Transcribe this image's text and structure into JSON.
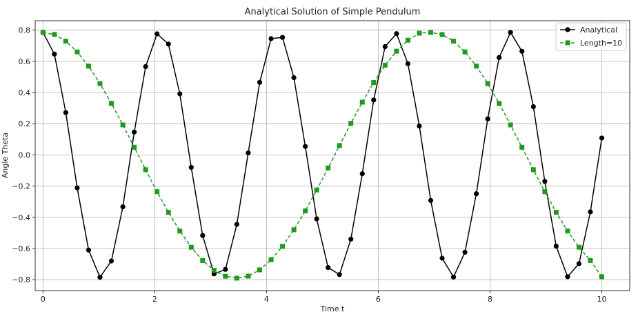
{
  "chart_data": {
    "type": "line",
    "title": "Analytical Solution of Simple Pendulum",
    "xlabel": "Time t",
    "ylabel": "Angle Theta",
    "xlim": [
      -0.14,
      10.5
    ],
    "ylim": [
      -0.87,
      0.86
    ],
    "xticks": [
      0,
      2,
      4,
      6,
      8,
      10
    ],
    "yticks": [
      -0.8,
      -0.6,
      -0.4,
      -0.2,
      0.0,
      0.2,
      0.4,
      0.6,
      0.8
    ],
    "xtick_labels": [
      "0",
      "2",
      "4",
      "6",
      "8",
      "10"
    ],
    "ytick_labels": [
      "−0.8",
      "−0.6",
      "−0.4",
      "−0.2",
      "0.0",
      "0.2",
      "0.4",
      "0.6",
      "0.8"
    ],
    "grid": true,
    "legend_position": "top-right",
    "series": [
      {
        "name": "Analytical",
        "color": "#000000",
        "marker": "circle",
        "linestyle": "solid",
        "x": [
          0.0,
          0.204,
          0.408,
          0.612,
          0.816,
          1.02,
          1.224,
          1.429,
          1.633,
          1.837,
          2.041,
          2.245,
          2.449,
          2.653,
          2.857,
          3.061,
          3.265,
          3.469,
          3.673,
          3.878,
          4.082,
          4.286,
          4.49,
          4.694,
          4.898,
          5.102,
          5.306,
          5.51,
          5.714,
          5.918,
          6.122,
          6.327,
          6.531,
          6.735,
          6.939,
          7.143,
          7.347,
          7.551,
          7.755,
          7.959,
          8.163,
          8.367,
          8.571,
          8.776,
          8.98,
          9.184,
          9.388,
          9.592,
          9.796,
          10.0
        ],
        "y": [
          0.785,
          0.646,
          0.271,
          -0.211,
          -0.61,
          -0.784,
          -0.68,
          -0.333,
          0.146,
          0.566,
          0.776,
          0.71,
          0.391,
          -0.08,
          -0.517,
          -0.763,
          -0.734,
          -0.445,
          0.013,
          0.465,
          0.745,
          0.753,
          0.495,
          0.054,
          -0.41,
          -0.722,
          -0.767,
          -0.54,
          -0.121,
          0.352,
          0.694,
          0.777,
          0.584,
          0.185,
          -0.292,
          -0.662,
          -0.783,
          -0.624,
          -0.249,
          0.231,
          0.624,
          0.785,
          0.664,
          0.309,
          -0.17,
          -0.585,
          -0.781,
          -0.697,
          -0.365,
          0.108
        ]
      },
      {
        "name": "Length=10",
        "color": "#1f9a1f",
        "marker": "square",
        "linestyle": "dashed",
        "x": [
          0.0,
          0.204,
          0.408,
          0.612,
          0.816,
          1.02,
          1.224,
          1.429,
          1.633,
          1.837,
          2.041,
          2.245,
          2.449,
          2.653,
          2.857,
          3.061,
          3.265,
          3.469,
          3.673,
          3.878,
          4.082,
          4.286,
          4.49,
          4.694,
          4.898,
          5.102,
          5.306,
          5.51,
          5.714,
          5.918,
          6.122,
          6.327,
          6.531,
          6.735,
          6.939,
          7.143,
          7.347,
          7.551,
          7.755,
          7.959,
          8.163,
          8.367,
          8.571,
          8.776,
          8.98,
          9.184,
          9.388,
          9.592,
          9.796,
          10.0
        ],
        "y": [
          0.785,
          0.772,
          0.729,
          0.66,
          0.569,
          0.457,
          0.33,
          0.192,
          0.049,
          -0.095,
          -0.236,
          -0.368,
          -0.488,
          -0.592,
          -0.677,
          -0.74,
          -0.778,
          -0.79,
          -0.777,
          -0.737,
          -0.672,
          -0.586,
          -0.48,
          -0.359,
          -0.225,
          -0.084,
          0.06,
          0.202,
          0.338,
          0.464,
          0.575,
          0.665,
          0.735,
          0.78,
          0.785,
          0.771,
          0.729,
          0.66,
          0.569,
          0.457,
          0.33,
          0.192,
          0.049,
          -0.095,
          -0.236,
          -0.368,
          -0.488,
          -0.592,
          -0.677,
          -0.781
        ]
      }
    ]
  }
}
